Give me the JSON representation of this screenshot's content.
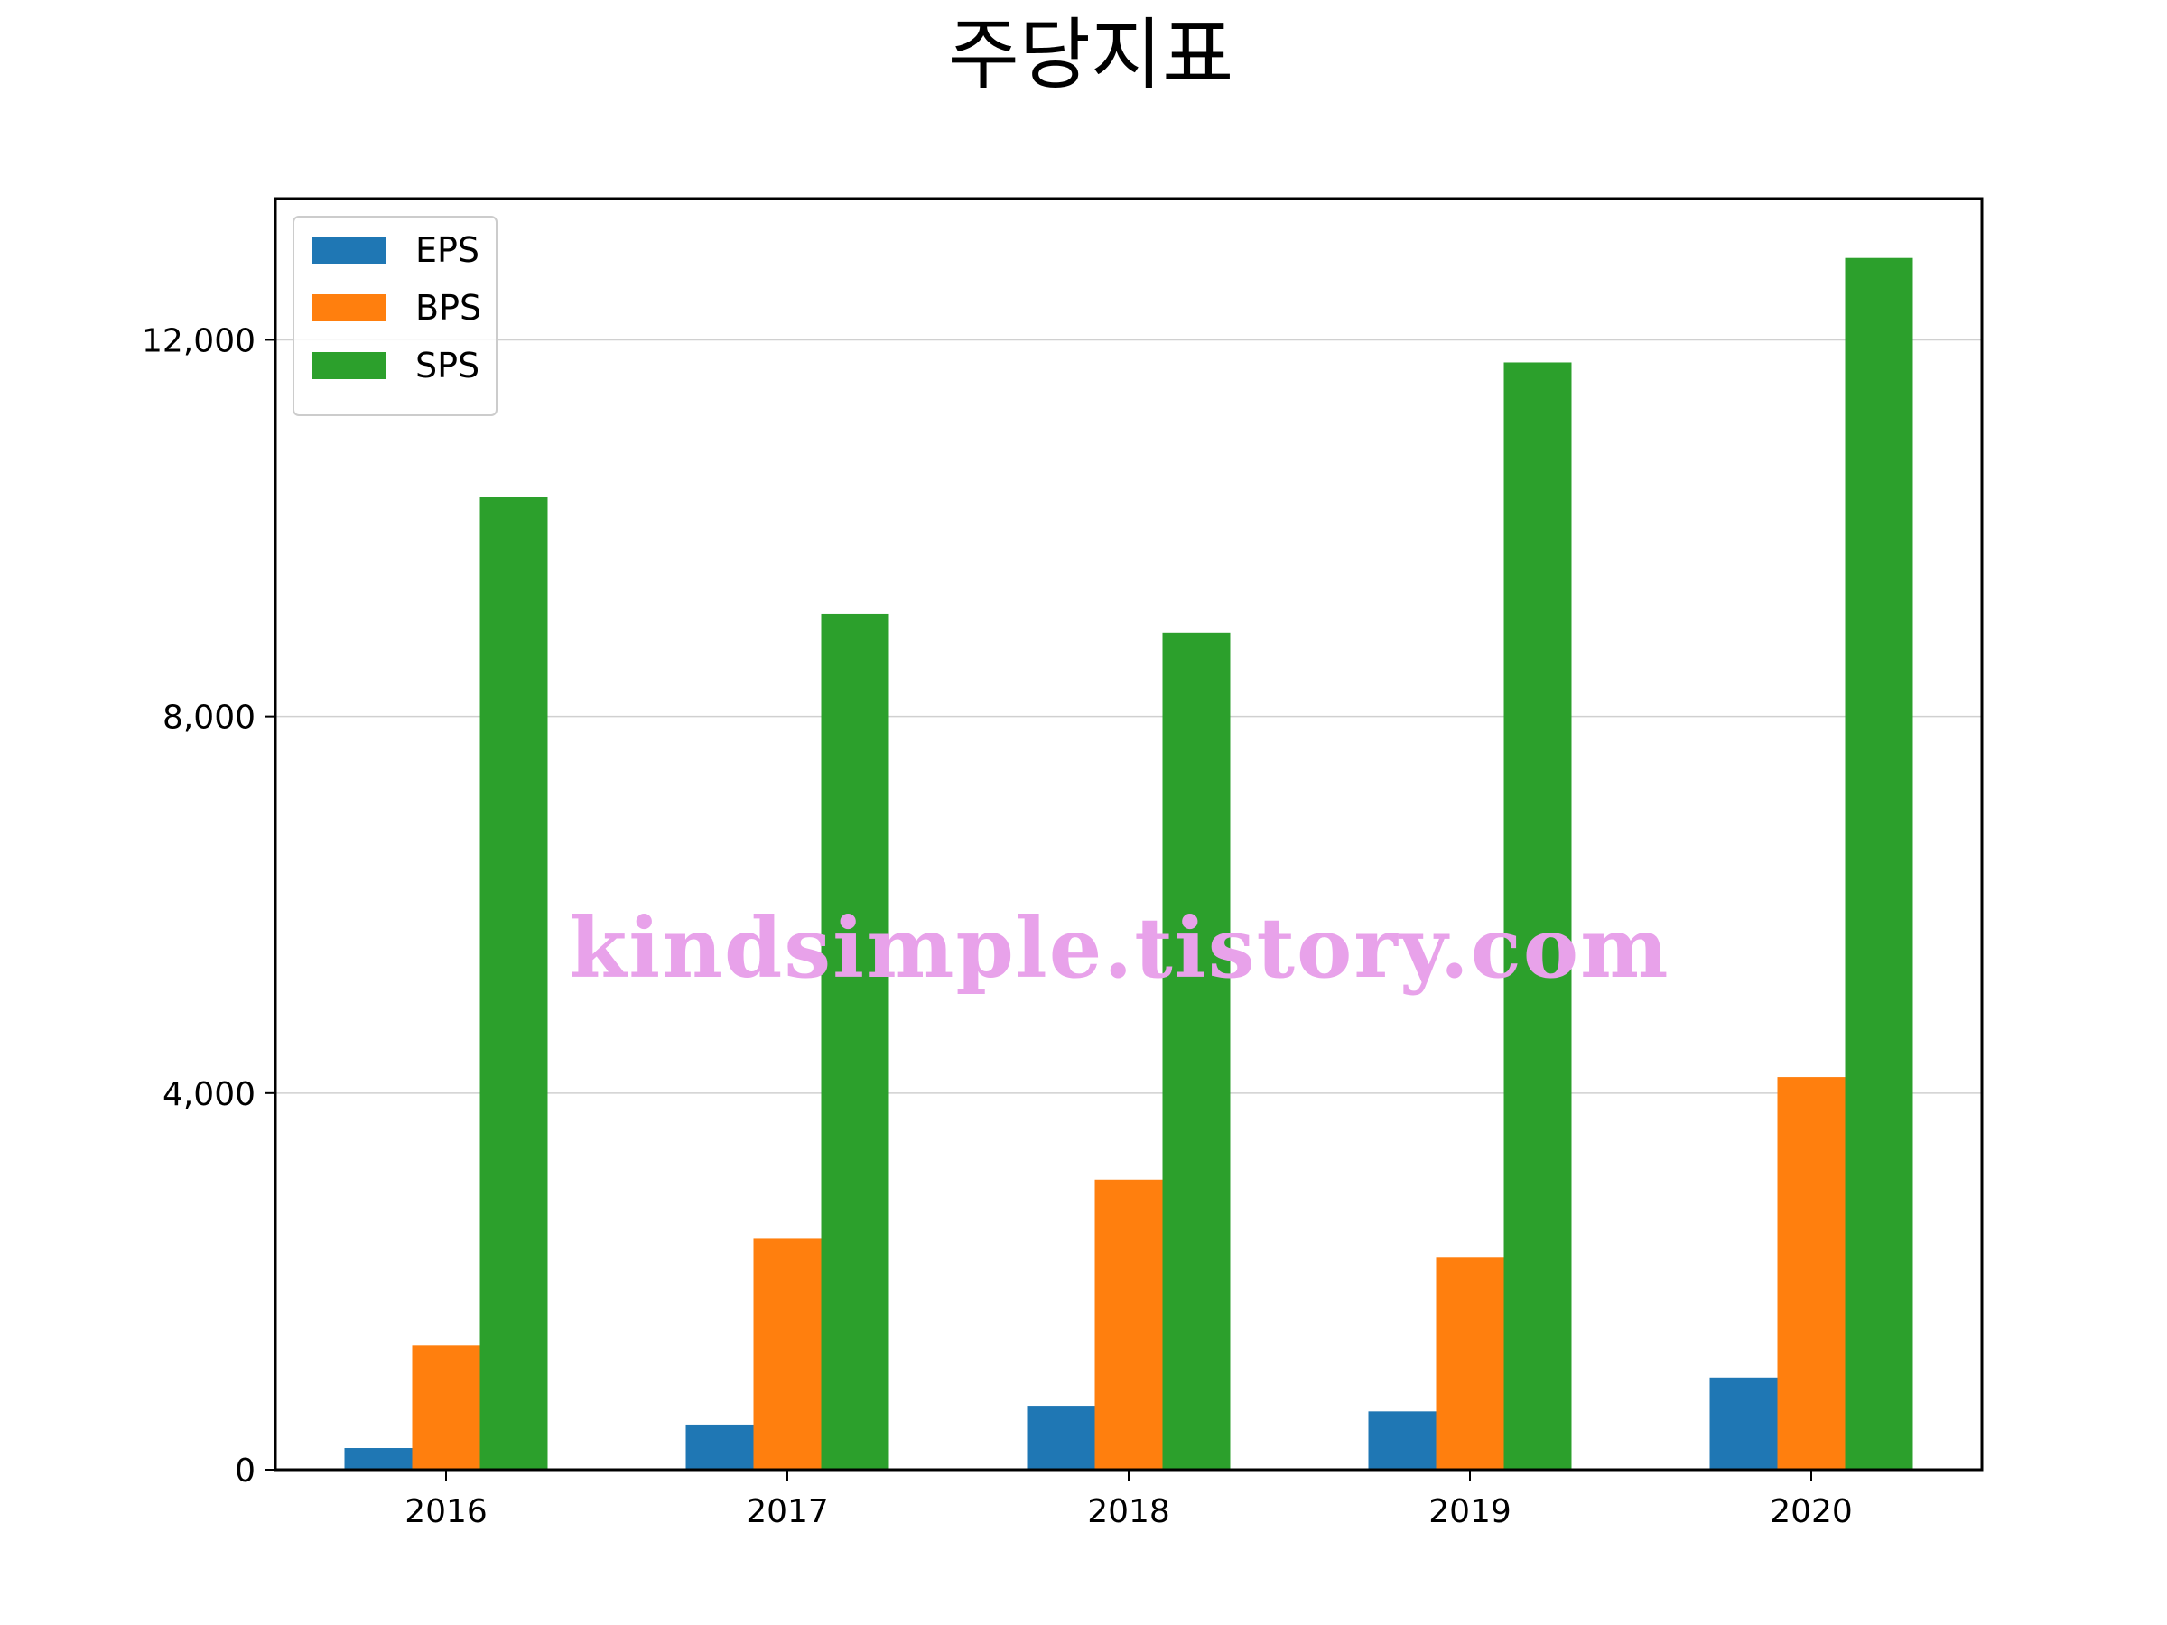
{
  "chart_data": {
    "type": "bar",
    "title": "주당지표",
    "xlabel": "",
    "ylabel": "",
    "categories": [
      "2016",
      "2017",
      "2018",
      "2019",
      "2020"
    ],
    "series": [
      {
        "name": "EPS",
        "color": "#1f77b4",
        "values": [
          230,
          480,
          680,
          620,
          980
        ]
      },
      {
        "name": "BPS",
        "color": "#ff7f0e",
        "values": [
          1320,
          2460,
          3080,
          2260,
          4170
        ]
      },
      {
        "name": "SPS",
        "color": "#2ca02c",
        "values": [
          10330,
          9090,
          8890,
          11760,
          12870
        ]
      }
    ],
    "ylim": [
      0,
      13500
    ],
    "yticks": [
      0,
      4000,
      8000,
      12000
    ],
    "ytick_labels": [
      "0",
      "4,000",
      "8,000",
      "12,000"
    ],
    "grid": "horizontal",
    "legend_position": "top-left",
    "watermark": "kindsimple.tistory.com"
  }
}
